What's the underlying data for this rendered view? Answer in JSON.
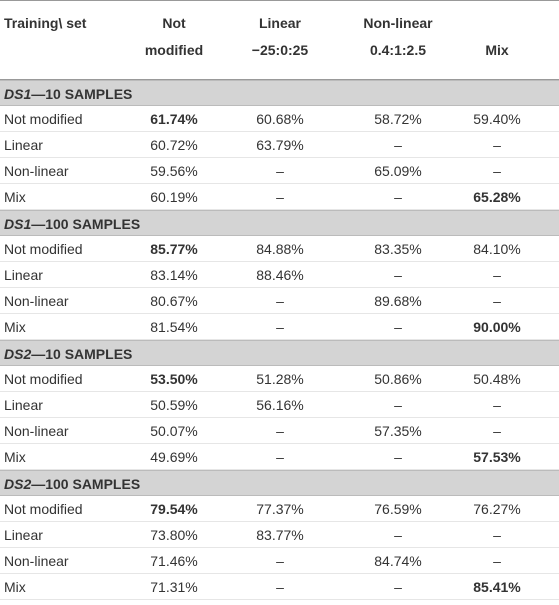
{
  "header": {
    "row_label": "Training\\ set",
    "columns": [
      [
        "Not",
        "modified"
      ],
      [
        "Linear",
        "−25:0:25"
      ],
      [
        "Non-linear",
        "0.4:1:2.5"
      ],
      [
        "",
        "Mix"
      ]
    ]
  },
  "sections": [
    {
      "dataset": "DS1",
      "label": "—10 SAMPLES",
      "rows": [
        {
          "label": "Not modified",
          "cells": [
            "61.74%",
            "60.68%",
            "58.72%",
            "59.40%"
          ],
          "bold": 0
        },
        {
          "label": "Linear",
          "cells": [
            "60.72%",
            "63.79%",
            "–",
            "–"
          ]
        },
        {
          "label": "Non-linear",
          "cells": [
            "59.56%",
            "–",
            "65.09%",
            "–"
          ]
        },
        {
          "label": "Mix",
          "cells": [
            "60.19%",
            "–",
            "–",
            "65.28%"
          ],
          "bold": 3
        }
      ]
    },
    {
      "dataset": "DS1",
      "label": "—100 SAMPLES",
      "rows": [
        {
          "label": "Not modified",
          "cells": [
            "85.77%",
            "84.88%",
            "83.35%",
            "84.10%"
          ],
          "bold": 0
        },
        {
          "label": "Linear",
          "cells": [
            "83.14%",
            "88.46%",
            "–",
            "–"
          ]
        },
        {
          "label": "Non-linear",
          "cells": [
            "80.67%",
            "–",
            "89.68%",
            "–"
          ]
        },
        {
          "label": "Mix",
          "cells": [
            "81.54%",
            "–",
            "–",
            "90.00%"
          ],
          "bold": 3
        }
      ]
    },
    {
      "dataset": "DS2",
      "label": "—10 SAMPLES",
      "rows": [
        {
          "label": "Not modified",
          "cells": [
            "53.50%",
            "51.28%",
            "50.86%",
            "50.48%"
          ],
          "bold": 0
        },
        {
          "label": "Linear",
          "cells": [
            "50.59%",
            "56.16%",
            "–",
            "–"
          ]
        },
        {
          "label": "Non-linear",
          "cells": [
            "50.07%",
            "–",
            "57.35%",
            "–"
          ]
        },
        {
          "label": "Mix",
          "cells": [
            "49.69%",
            "–",
            "–",
            "57.53%"
          ],
          "bold": 3
        }
      ]
    },
    {
      "dataset": "DS2",
      "label": "—100 SAMPLES",
      "rows": [
        {
          "label": "Not modified",
          "cells": [
            "79.54%",
            "77.37%",
            "76.59%",
            "76.27%"
          ],
          "bold": 0
        },
        {
          "label": "Linear",
          "cells": [
            "73.80%",
            "83.77%",
            "–",
            "–"
          ]
        },
        {
          "label": "Non-linear",
          "cells": [
            "71.46%",
            "–",
            "84.74%",
            "–"
          ]
        },
        {
          "label": "Mix",
          "cells": [
            "71.31%",
            "–",
            "–",
            "85.41%"
          ],
          "bold": 3
        }
      ]
    }
  ]
}
